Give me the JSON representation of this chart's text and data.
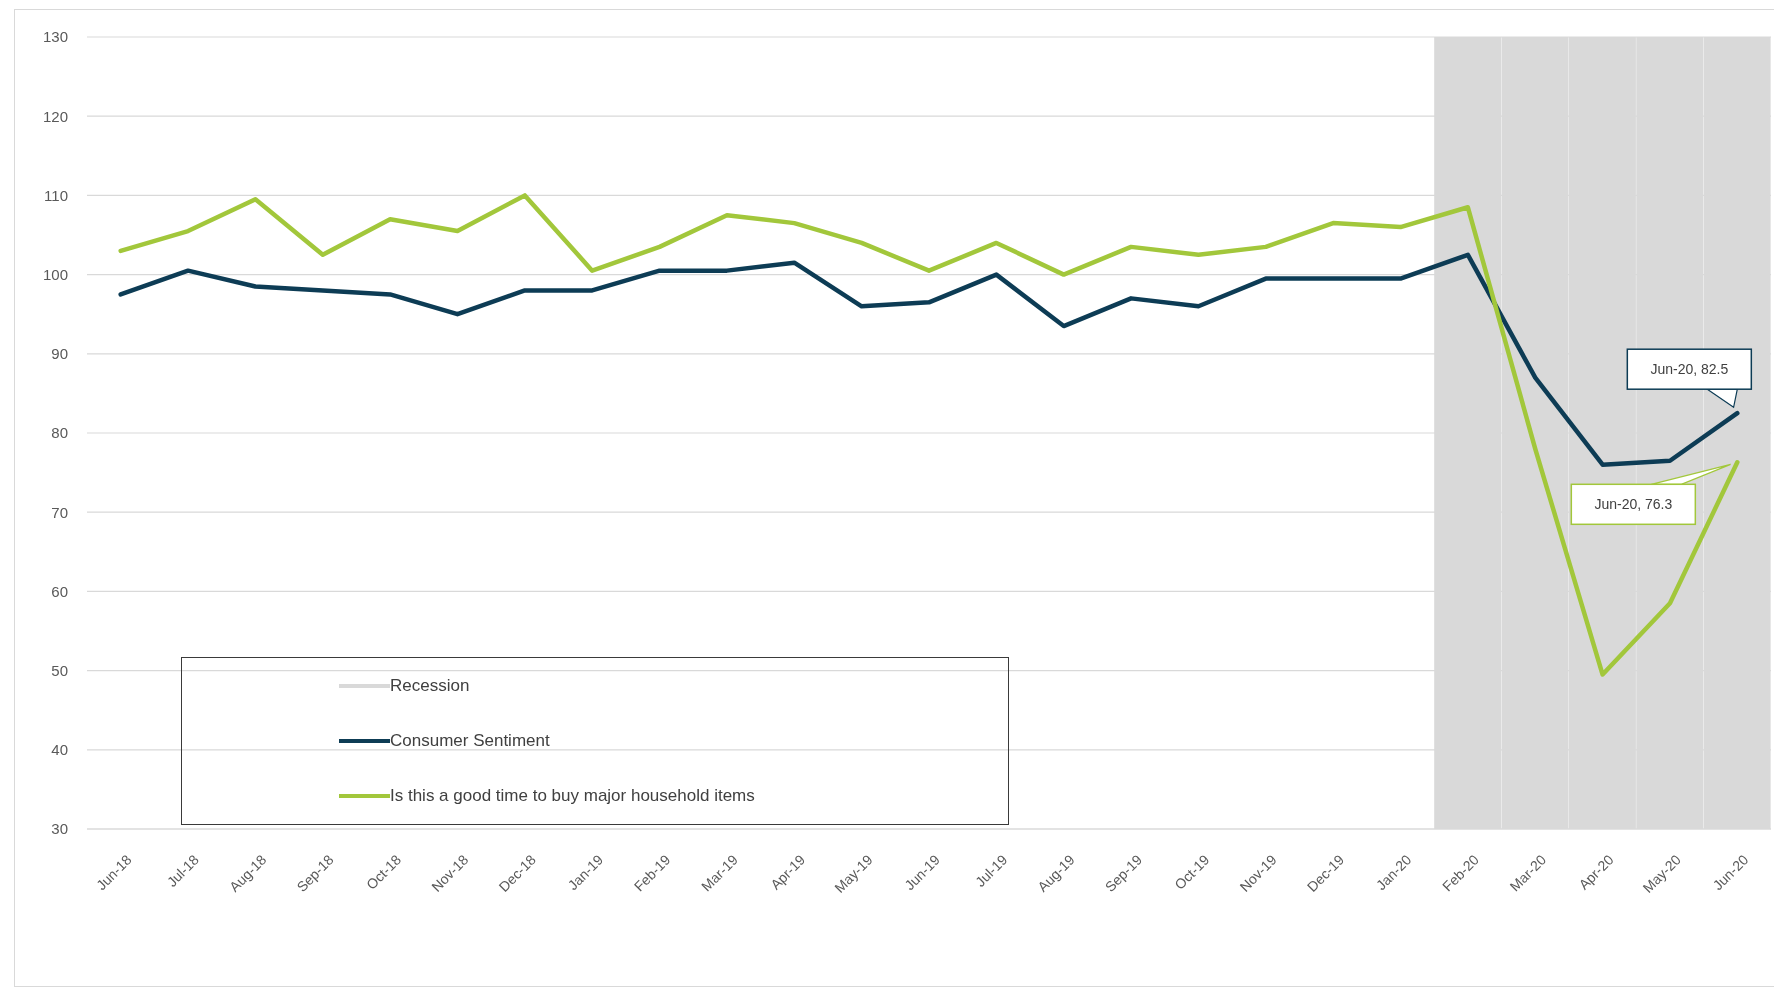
{
  "chart_data": {
    "type": "line",
    "categories": [
      "Jun-18",
      "Jul-18",
      "Aug-18",
      "Sep-18",
      "Oct-18",
      "Nov-18",
      "Dec-18",
      "Jan-19",
      "Feb-19",
      "Mar-19",
      "Apr-19",
      "May-19",
      "Jun-19",
      "Jul-19",
      "Aug-19",
      "Sep-19",
      "Oct-19",
      "Nov-19",
      "Dec-19",
      "Jan-20",
      "Feb-20",
      "Mar-20",
      "Apr-20",
      "May-20",
      "Jun-20"
    ],
    "series": [
      {
        "type": "bar",
        "name": "Recession",
        "color": "#d9d9d9",
        "values": [
          null,
          null,
          null,
          null,
          null,
          null,
          null,
          null,
          null,
          null,
          null,
          null,
          null,
          null,
          null,
          null,
          null,
          null,
          null,
          null,
          130,
          130,
          130,
          130,
          130
        ]
      },
      {
        "name": "Consumer Sentiment",
        "color": "#0d3c55",
        "values": [
          97.5,
          100.5,
          98.5,
          98,
          97.5,
          95,
          98,
          98,
          100.5,
          100.5,
          101.5,
          96,
          96.5,
          100,
          93.5,
          97,
          96,
          99.5,
          99.5,
          99.5,
          102.5,
          87,
          76,
          76.5,
          82.5
        ],
        "value_labels": [
          null,
          null,
          null,
          null,
          null,
          null,
          null,
          null,
          null,
          null,
          null,
          null,
          null,
          null,
          null,
          null,
          null,
          null,
          null,
          null,
          null,
          null,
          null,
          null,
          "Jun-20, 82.5"
        ]
      },
      {
        "name": "Is this a good time to buy major household items",
        "color": "#a2c73b",
        "values": [
          103,
          105.5,
          109.5,
          102.5,
          107,
          105.5,
          110,
          100.5,
          103.5,
          107.5,
          106.5,
          104,
          100.5,
          104,
          100,
          103.5,
          102.5,
          103.5,
          106.5,
          106,
          108.5,
          78,
          49.5,
          58.5,
          76.3
        ],
        "value_labels": [
          null,
          null,
          null,
          null,
          null,
          null,
          null,
          null,
          null,
          null,
          null,
          null,
          null,
          null,
          null,
          null,
          null,
          null,
          null,
          null,
          null,
          null,
          null,
          null,
          "Jun-20, 76.3"
        ]
      }
    ],
    "ylim": [
      30,
      130
    ],
    "yticks": [
      30,
      40,
      50,
      60,
      70,
      80,
      90,
      100,
      110,
      120,
      130
    ],
    "grid": "y",
    "legend": "bottom left",
    "marker": "none",
    "line_style": "solid"
  }
}
